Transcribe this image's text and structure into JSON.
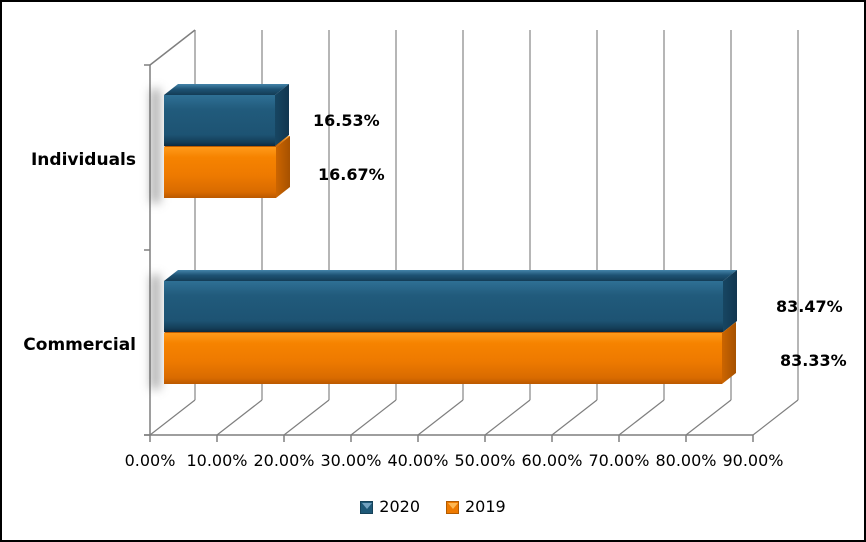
{
  "chart_data": {
    "type": "bar",
    "orientation": "horizontal",
    "effect": "3d",
    "title": "",
    "categories": [
      "Individuals",
      "Commercial"
    ],
    "series": [
      {
        "name": "2020",
        "color": "#1e5877",
        "values": [
          16.53,
          83.47
        ],
        "data_labels": [
          "16.53%",
          "83.47%"
        ]
      },
      {
        "name": "2019",
        "color": "#ee7a00",
        "values": [
          16.67,
          83.33
        ],
        "data_labels": [
          "16.67%",
          "83.33%"
        ]
      }
    ],
    "x_axis": {
      "min": 0,
      "max": 90,
      "tick_step": 10,
      "unit": "%",
      "tick_labels": [
        "0.00%",
        "10.00%",
        "20.00%",
        "30.00%",
        "40.00%",
        "50.00%",
        "60.00%",
        "70.00%",
        "80.00%",
        "90.00%"
      ]
    },
    "legend": {
      "position": "bottom",
      "entries": [
        "2020",
        "2019"
      ]
    },
    "grid": true
  },
  "style_colors": {
    "background": "#ffffff",
    "frame_border": "#000000",
    "gridline": "#9d9d9d",
    "axis_line": "#7f7f7f",
    "text": "#000000",
    "series_2020": "#1e5877",
    "series_2019": "#ee7a00"
  }
}
